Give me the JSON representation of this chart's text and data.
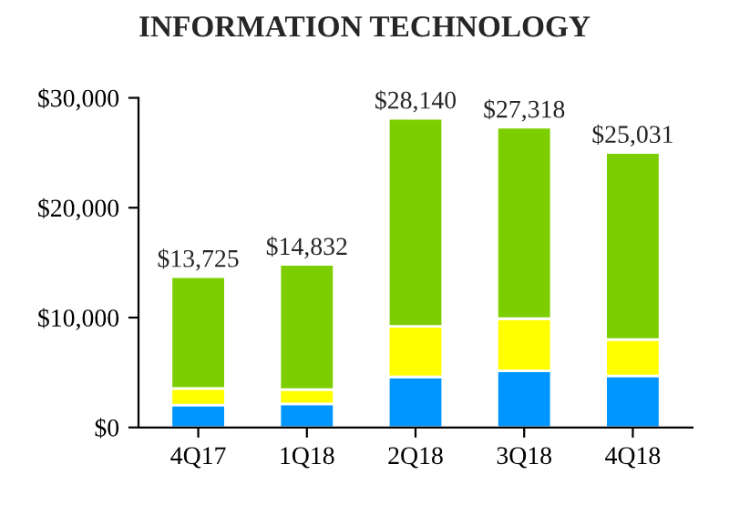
{
  "chart_data": {
    "type": "bar",
    "title": "INFORMATION TECHNOLOGY",
    "stacked": true,
    "categories": [
      "4Q17",
      "1Q18",
      "2Q18",
      "3Q18",
      "4Q18"
    ],
    "series": [
      {
        "color": "#0096ff",
        "values": [
          2050,
          2150,
          4600,
          5150,
          4700
        ]
      },
      {
        "color": "#ffff00",
        "values": [
          1500,
          1300,
          4600,
          4750,
          3300
        ]
      },
      {
        "color": "#7dce00",
        "values": [
          10175,
          11382,
          18940,
          17418,
          17031
        ]
      }
    ],
    "totals": [
      "$13,725",
      "$14,832",
      "$28,140",
      "$27,318",
      "$25,031"
    ],
    "ylim": [
      0,
      30000
    ],
    "yticks": [
      {
        "value": 0,
        "label": "$0"
      },
      {
        "value": 10000,
        "label": "$10,000"
      },
      {
        "value": 20000,
        "label": "$20,000"
      },
      {
        "value": 30000,
        "label": "$30,000"
      }
    ],
    "grid": false,
    "legend": false
  }
}
